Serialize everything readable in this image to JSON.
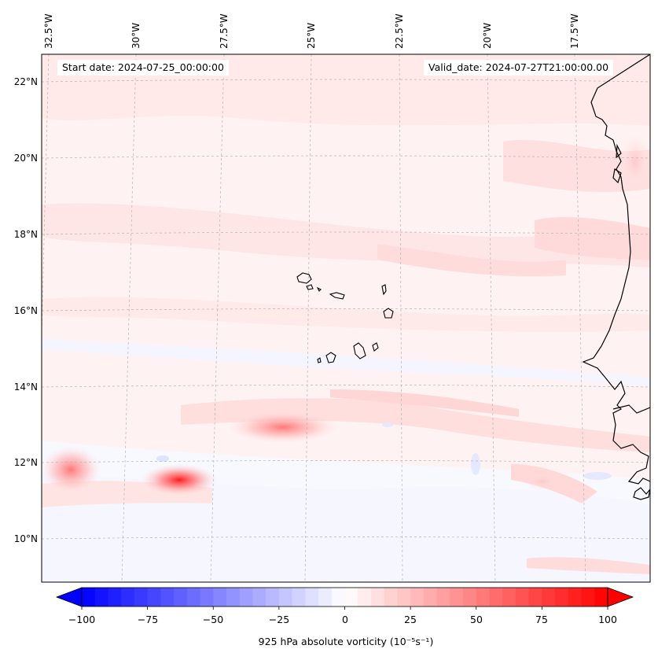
{
  "map": {
    "start_date": "Start date: 2024-07-25_00:00:00",
    "valid_date": "Valid_date: 2024-07-27T21:00:00.00",
    "lon_labels": [
      "32.5°W",
      "30°W",
      "27.5°W",
      "25°W",
      "22.5°W",
      "20°W",
      "17.5°W"
    ],
    "lat_labels": [
      "22°N",
      "20°N",
      "18°N",
      "16°N",
      "14°N",
      "12°N",
      "10°N"
    ],
    "features": [
      "Cabo Verde islands",
      "West African coastline"
    ]
  },
  "colorbar": {
    "label": "925 hPa absolute vorticity (10⁻⁵s⁻¹)",
    "ticks": [
      "−100",
      "−75",
      "−50",
      "−25",
      "0",
      "25",
      "50",
      "75",
      "100"
    ],
    "min": -100,
    "max": 100,
    "extend": "both"
  },
  "colors": {
    "negative": "#0000ff",
    "positive": "#ff0000",
    "neutral": "#ffffff"
  }
}
